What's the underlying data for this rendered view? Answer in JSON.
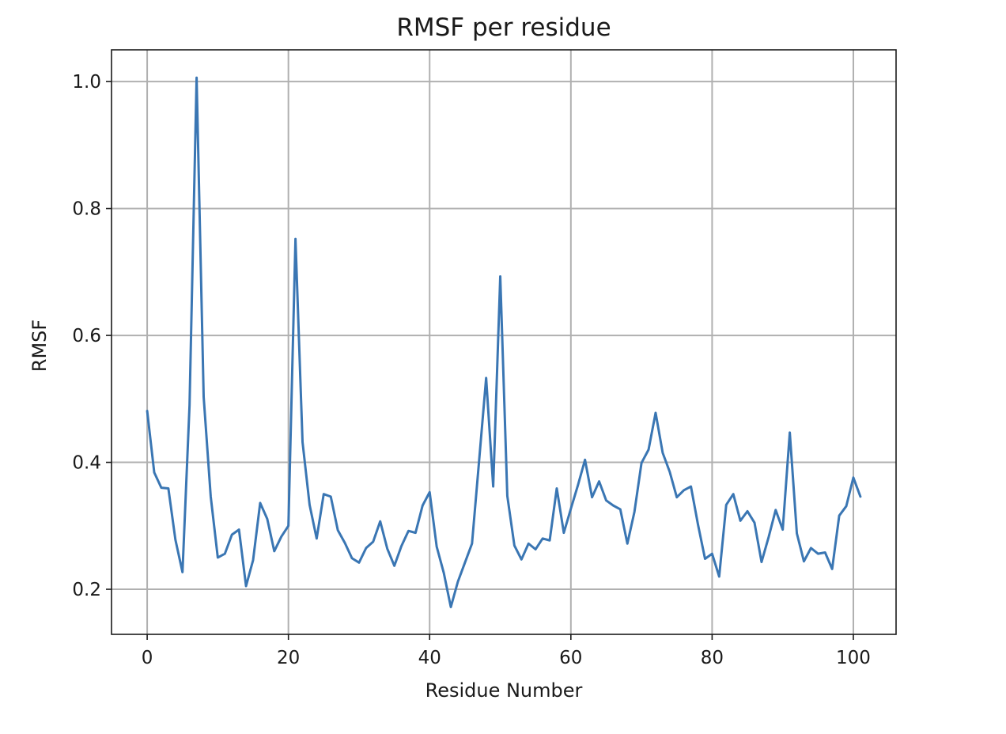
{
  "chart_data": {
    "type": "line",
    "title": "RMSF per residue",
    "xlabel": "Residue Number",
    "ylabel": "RMSF",
    "xlim": [
      -5.05,
      106.05
    ],
    "ylim": [
      0.129,
      1.05
    ],
    "xticks": [
      0,
      20,
      40,
      60,
      80,
      100
    ],
    "yticks": [
      0.2,
      0.4,
      0.6,
      0.8,
      1.0
    ],
    "xtick_labels": [
      "0",
      "20",
      "40",
      "60",
      "80",
      "100"
    ],
    "ytick_labels": [
      "0.2",
      "0.4",
      "0.6",
      "0.8",
      "1.0"
    ],
    "grid": true,
    "legend": "none",
    "colors": {
      "line": "#3a76b3",
      "grid": "#b0b0b0",
      "axes": "#1a1a1a"
    },
    "series": [
      {
        "x": [
          0,
          1,
          2,
          3,
          4,
          5,
          6,
          7,
          8,
          9,
          10,
          11,
          12,
          13,
          14,
          15,
          16,
          17,
          18,
          19,
          20,
          21,
          22,
          23,
          24,
          25,
          26,
          27,
          28,
          29,
          30,
          31,
          32,
          33,
          34,
          35,
          36,
          37,
          38,
          39,
          40,
          41,
          42,
          43,
          44,
          45,
          46,
          47,
          48,
          49,
          50,
          51,
          52,
          53,
          54,
          55,
          56,
          57,
          58,
          59,
          60,
          61,
          62,
          63,
          64,
          65,
          66,
          67,
          68,
          69,
          70,
          71,
          72,
          73,
          74,
          75,
          76,
          77,
          78,
          79,
          80,
          81,
          82,
          83,
          84,
          85,
          86,
          87,
          88,
          89,
          90,
          91,
          92,
          93,
          94,
          95,
          96,
          97,
          98,
          99,
          100,
          101
        ],
        "values": [
          0.481,
          0.384,
          0.36,
          0.359,
          0.278,
          0.227,
          0.49,
          1.006,
          0.503,
          0.346,
          0.25,
          0.256,
          0.286,
          0.294,
          0.205,
          0.246,
          0.336,
          0.311,
          0.26,
          0.283,
          0.3,
          0.752,
          0.432,
          0.333,
          0.28,
          0.35,
          0.346,
          0.293,
          0.273,
          0.249,
          0.242,
          0.265,
          0.275,
          0.307,
          0.264,
          0.237,
          0.268,
          0.292,
          0.289,
          0.332,
          0.353,
          0.267,
          0.226,
          0.172,
          0.212,
          0.242,
          0.272,
          0.402,
          0.533,
          0.362,
          0.693,
          0.347,
          0.269,
          0.247,
          0.272,
          0.263,
          0.28,
          0.277,
          0.359,
          0.289,
          0.327,
          0.364,
          0.404,
          0.345,
          0.37,
          0.34,
          0.332,
          0.326,
          0.272,
          0.322,
          0.399,
          0.42,
          0.478,
          0.415,
          0.385,
          0.345,
          0.356,
          0.362,
          0.302,
          0.248,
          0.256,
          0.22,
          0.333,
          0.35,
          0.308,
          0.323,
          0.305,
          0.243,
          0.282,
          0.325,
          0.294,
          0.447,
          0.288,
          0.244,
          0.265,
          0.256,
          0.258,
          0.232,
          0.316,
          0.331,
          0.376,
          0.346
        ]
      }
    ]
  }
}
